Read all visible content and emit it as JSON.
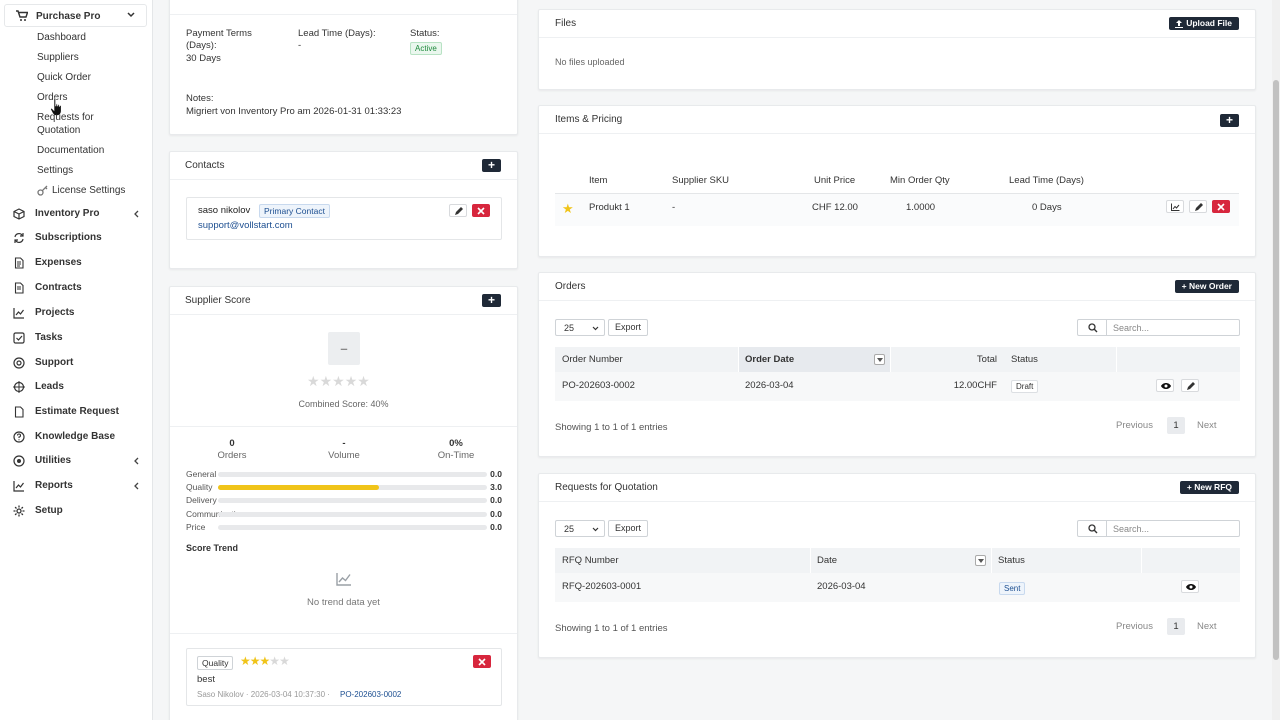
{
  "sidebar": {
    "app_title": "Purchase Pro",
    "sub_items": [
      "Dashboard",
      "Suppliers",
      "Quick Order",
      "Orders",
      "Requests for",
      "Quotation",
      "Documentation",
      "Settings",
      "License Settings"
    ],
    "main_items": [
      "Inventory Pro",
      "Subscriptions",
      "Expenses",
      "Contracts",
      "Projects",
      "Tasks",
      "Support",
      "Leads",
      "Estimate Request",
      "Knowledge Base",
      "Utilities",
      "Reports",
      "Setup"
    ]
  },
  "details": {
    "payment_terms_label": "Payment Terms",
    "payment_terms_label2": "(Days):",
    "payment_terms_value": "30 Days",
    "lead_time_label": "Lead Time (Days):",
    "lead_time_value": "-",
    "status_label": "Status:",
    "status_value": "Active",
    "notes_label": "Notes:",
    "notes_value": "Migriert von Inventory Pro am 2026-01-31 01:33:23"
  },
  "contacts": {
    "title": "Contacts",
    "name": "saso nikolov",
    "primary_badge": "Primary Contact",
    "email": "support@vollstart.com"
  },
  "score": {
    "title": "Supplier Score",
    "big": "–",
    "combined": "Combined Score: 40%",
    "stats": [
      {
        "value": "0",
        "label": "Orders"
      },
      {
        "value": "-",
        "label": "Volume"
      },
      {
        "value": "0%",
        "label": "On-Time"
      }
    ],
    "bars": [
      {
        "label": "General",
        "value": "0.0",
        "level": 0
      },
      {
        "label": "Quality",
        "value": "3.0",
        "level": 0.6
      },
      {
        "label": "Delivery",
        "value": "0.0",
        "level": 0
      },
      {
        "label": "Communication",
        "value": "0.0",
        "level": 0
      },
      {
        "label": "Price",
        "value": "0.0",
        "level": 0
      }
    ],
    "trend_title": "Score Trend",
    "trend_empty": "No trend data yet",
    "review_tag": "Quality",
    "review_stars": 3,
    "review_text": "best",
    "review_meta": "Saso Nikolov · 2026-03-04 10:37:30 ·",
    "review_link": "PO-202603-0002"
  },
  "files": {
    "title": "Files",
    "upload": "Upload File",
    "empty": "No files uploaded"
  },
  "items": {
    "title": "Items & Pricing",
    "headers": [
      "Item",
      "Supplier SKU",
      "Unit Price",
      "Min Order Qty",
      "Lead Time (Days)"
    ],
    "row": {
      "item": "Produkt 1",
      "sku": "-",
      "price": "CHF 12.00",
      "min_qty": "1.0000",
      "lead": "0 Days"
    }
  },
  "orders": {
    "title": "Orders",
    "new_btn": "New Order",
    "page_size": "25",
    "export": "Export",
    "search_placeholder": "Search...",
    "headers": [
      "Order Number",
      "Order Date",
      "Total",
      "Status"
    ],
    "row": {
      "number": "PO-202603-0002",
      "date": "2026-03-04",
      "total": "12.00CHF",
      "status": "Draft"
    },
    "showing": "Showing 1 to 1 of 1 entries",
    "prev": "Previous",
    "page": "1",
    "next": "Next"
  },
  "rfq": {
    "title": "Requests for Quotation",
    "new_btn": "New RFQ",
    "page_size": "25",
    "export": "Export",
    "search_placeholder": "Search...",
    "headers": [
      "RFQ Number",
      "Date",
      "Status"
    ],
    "row": {
      "number": "RFQ-202603-0001",
      "date": "2026-03-04",
      "status": "Sent"
    },
    "showing": "Showing 1 to 1 of 1 entries",
    "prev": "Previous",
    "page": "1",
    "next": "Next"
  },
  "colors": {
    "accent": "#1f2937",
    "danger": "#d7263d",
    "star": "#f0c419",
    "link": "#1d4f91"
  }
}
